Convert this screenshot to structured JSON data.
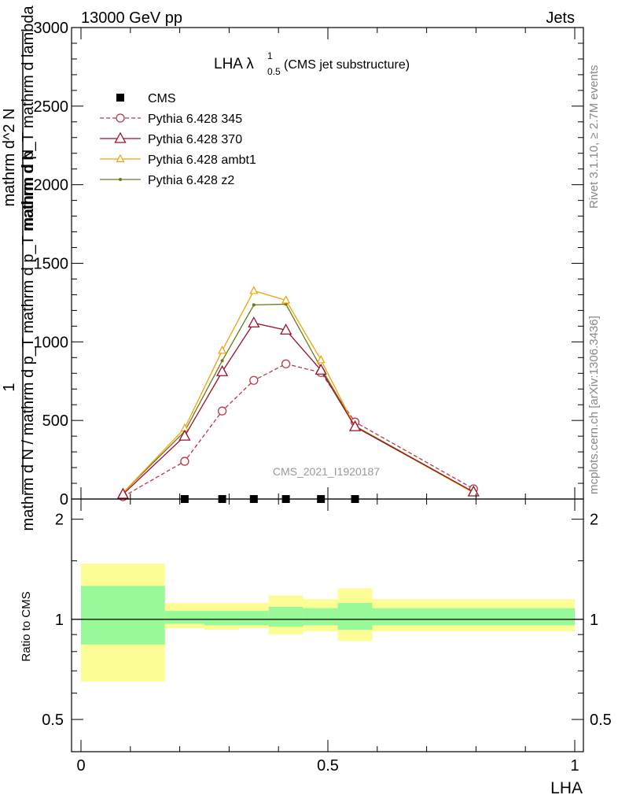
{
  "header": {
    "left": "13000 GeV pp",
    "right": "Jets"
  },
  "plot_title": {
    "main": "LHA λ",
    "sup": "1",
    "sub": "0.5",
    "suffix": " (CMS jet substructure)"
  },
  "ylabel": {
    "num": "1",
    "den": "mathrm d N / mathrm d p_T mathrm d p_T mathrm d N",
    "num2": "mathrm d^2 N",
    "den2": "mathrm d p_T mathrm d lambda"
  },
  "analysis_label": "CMS_2021_I1920187",
  "side_text": {
    "top": "Rivet 3.1.10, ≥ 2.7M events",
    "bottom": "mcplots.cern.ch [arXiv:1306.3436]"
  },
  "ratio_ylabel": "Ratio to CMS",
  "xlabel": "LHA",
  "colors": {
    "cms": "#000000",
    "p345": "#b5394a",
    "p370": "#99122a",
    "ambt1": "#f0a30a",
    "z2": "#6b7a1a",
    "band_outer": "#fdfd96",
    "band_inner": "#98f998"
  },
  "chart_data": {
    "type": "line",
    "x_ticks": [
      "0",
      "0.5",
      "1"
    ],
    "main_y_ticks": [
      "0",
      "500",
      "1000",
      "1500",
      "2000",
      "2500",
      "3000"
    ],
    "ratio_y_ticks": [
      "0.5",
      "1",
      "2"
    ],
    "xlim": [
      0,
      1
    ],
    "ylim": [
      0,
      3000
    ],
    "ratio_ylim": [
      0.4,
      2.3
    ],
    "legend_position": "top-left",
    "bins": [
      [
        0,
        0.17
      ],
      [
        0.17,
        0.25
      ],
      [
        0.25,
        0.32
      ],
      [
        0.32,
        0.38
      ],
      [
        0.38,
        0.45
      ],
      [
        0.45,
        0.52
      ],
      [
        0.52,
        0.59
      ],
      [
        0.59,
        1.0
      ]
    ],
    "series": [
      {
        "name": "CMS",
        "key": "cms",
        "marker": "square",
        "x": [
          0.21,
          0.286,
          0.35,
          0.415,
          0.486,
          0.555
        ],
        "y": [
          0,
          0,
          0,
          0,
          0,
          0
        ]
      },
      {
        "name": "Pythia 6.428 345",
        "key": "p345",
        "marker": "circle",
        "dashed": true,
        "x": [
          0.085,
          0.21,
          0.286,
          0.35,
          0.415,
          0.486,
          0.555,
          0.795
        ],
        "y": [
          15,
          240,
          560,
          755,
          860,
          805,
          490,
          65
        ]
      },
      {
        "name": "Pythia 6.428 370",
        "key": "p370",
        "marker": "triangle",
        "x": [
          0.085,
          0.21,
          0.286,
          0.35,
          0.415,
          0.486,
          0.555,
          0.795
        ],
        "y": [
          30,
          400,
          810,
          1120,
          1075,
          820,
          460,
          45
        ]
      },
      {
        "name": "Pythia 6.428 ambt1",
        "key": "ambt1",
        "marker": "triangle-small",
        "x": [
          0.085,
          0.21,
          0.286,
          0.35,
          0.415,
          0.486,
          0.555,
          0.795
        ],
        "y": [
          40,
          450,
          945,
          1325,
          1265,
          885,
          460,
          40
        ]
      },
      {
        "name": "Pythia 6.428 z2",
        "key": "z2",
        "marker": "dot",
        "x": [
          0.085,
          0.21,
          0.286,
          0.35,
          0.415,
          0.486,
          0.555,
          0.795
        ],
        "y": [
          40,
          430,
          880,
          1235,
          1240,
          835,
          465,
          45
        ]
      }
    ],
    "ratio_bands": {
      "outer_lo": [
        0.65,
        0.94,
        0.93,
        0.94,
        0.9,
        0.92,
        0.86,
        0.92
      ],
      "outer_hi": [
        1.47,
        1.12,
        1.12,
        1.12,
        1.18,
        1.15,
        1.24,
        1.15
      ],
      "inner_lo": [
        0.84,
        0.97,
        0.96,
        0.96,
        0.95,
        0.96,
        0.93,
        0.96
      ],
      "inner_hi": [
        1.26,
        1.06,
        1.06,
        1.06,
        1.09,
        1.08,
        1.12,
        1.08
      ]
    }
  }
}
